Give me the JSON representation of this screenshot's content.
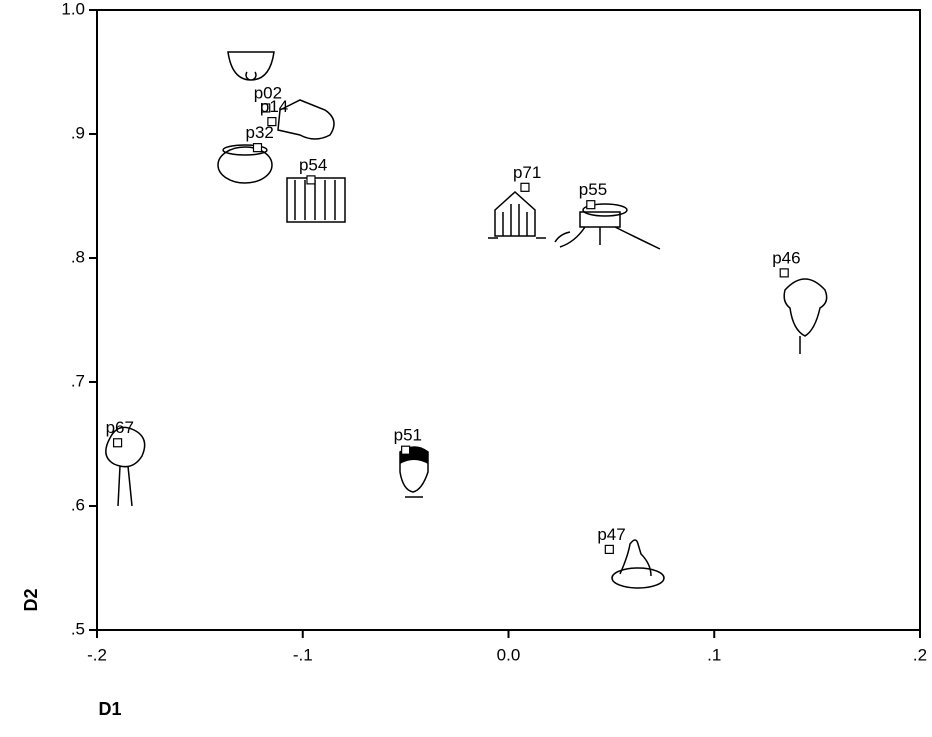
{
  "chart_data": {
    "type": "scatter",
    "xlabel": "D1",
    "ylabel": "D2",
    "point_labels": [
      "p02",
      "p14",
      "p32",
      "p54",
      "p71",
      "p55",
      "p46",
      "p67",
      "p51",
      "p47"
    ],
    "x": [
      -0.118,
      -0.115,
      -0.122,
      -0.096,
      0.008,
      0.04,
      0.134,
      -0.19,
      -0.05,
      0.049
    ],
    "values": [
      0.921,
      0.91,
      0.889,
      0.863,
      0.857,
      0.843,
      0.788,
      0.651,
      0.645,
      0.565
    ],
    "xlim": [
      -0.2,
      0.2
    ],
    "xticks": [
      {
        "value": -0.2,
        "label": "-.2"
      },
      {
        "value": -0.1,
        "label": "-.1"
      },
      {
        "value": 0,
        "label": "0.0"
      },
      {
        "value": 0.1,
        "label": ".1"
      },
      {
        "value": 0.2,
        "label": ".2"
      }
    ],
    "ylim": [
      0.5,
      1.0
    ],
    "yticks": [
      {
        "value": 0.5,
        "label": ".5"
      },
      {
        "value": 0.6,
        "label": ".6"
      },
      {
        "value": 0.7,
        "label": ".7"
      },
      {
        "value": 0.8,
        "label": ".8"
      },
      {
        "value": 0.9,
        "label": ".9"
      },
      {
        "value": 1.0,
        "label": "1.0"
      }
    ]
  }
}
